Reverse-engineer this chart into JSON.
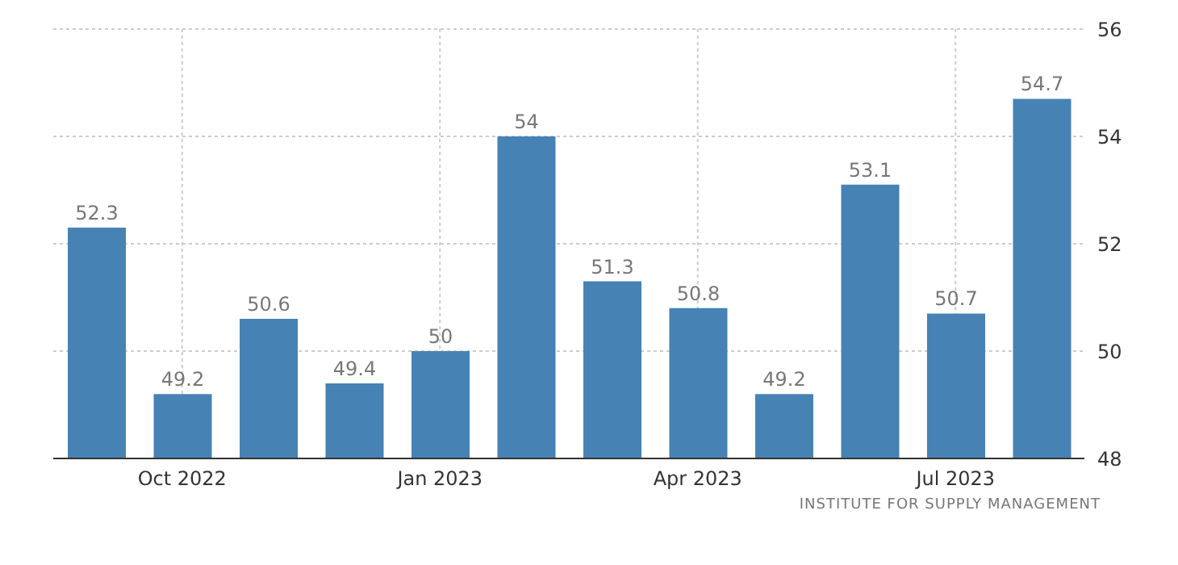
{
  "chart_data": {
    "type": "bar",
    "categories": [
      null,
      "Oct 2022",
      null,
      null,
      "Jan 2023",
      null,
      null,
      "Apr 2023",
      null,
      null,
      "Jul 2023",
      null
    ],
    "values": [
      52.3,
      49.2,
      50.6,
      49.4,
      50,
      54,
      51.3,
      50.8,
      49.2,
      53.1,
      50.7,
      54.7
    ],
    "color": "#4682b4",
    "ylim": [
      48,
      56
    ],
    "yticks": [
      48,
      50,
      52,
      54,
      56
    ],
    "grid": true,
    "data_labels": true,
    "annotations": [
      "INSTITUTE FOR SUPPLY MANAGEMENT"
    ]
  }
}
